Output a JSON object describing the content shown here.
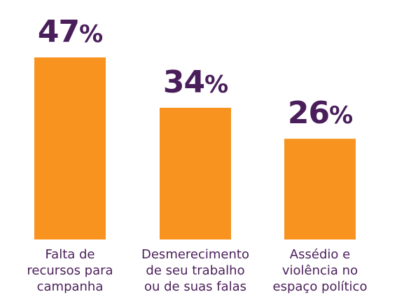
{
  "chart_data": {
    "type": "bar",
    "categories": [
      [
        "Falta de",
        "recursos para",
        "campanha"
      ],
      [
        "Desmerecimento",
        "de seu trabalho",
        "ou de suas falas"
      ],
      [
        "Assédio e",
        "violência no",
        "espaço político"
      ]
    ],
    "values": [
      47,
      34,
      26
    ],
    "value_labels": [
      "47%",
      "34%",
      "26%"
    ],
    "unit": "%",
    "ylim": [
      0,
      47
    ],
    "grid": false,
    "legend": "none",
    "colors": {
      "bar": "#F7931E",
      "value_text": "#4A1E5A",
      "label_text": "#4A1E5A"
    }
  }
}
